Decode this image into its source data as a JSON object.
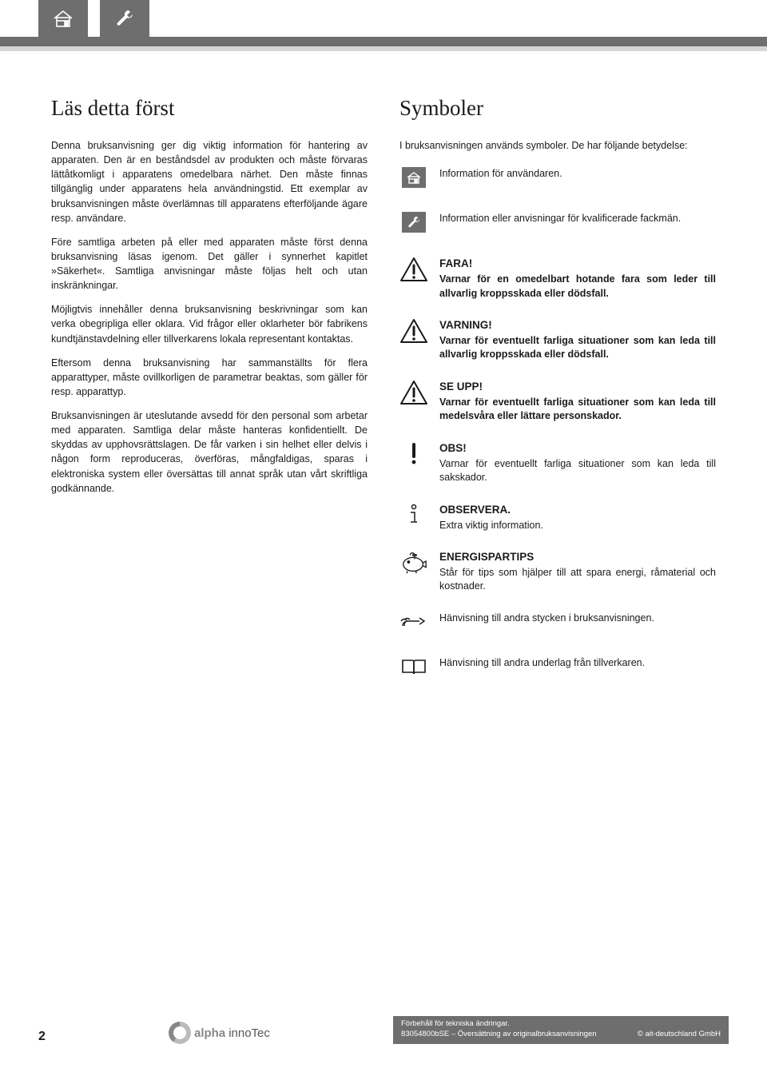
{
  "colors": {
    "gray": "#6e6e6e",
    "text": "#1a1a1a",
    "white": "#ffffff"
  },
  "left": {
    "heading": "Läs detta först",
    "paragraphs": [
      "Denna bruksanvisning ger dig viktig information för hantering av apparaten. Den är en beståndsdel av produkten och måste förvaras lättåtkomligt i apparatens omedelbara närhet. Den måste finnas tillgänglig under apparatens hela användningstid. Ett exemplar av bruksanvisningen måste överlämnas till apparatens efterföljande ägare resp. användare.",
      "Före samtliga arbeten på eller med apparaten måste först denna bruksanvisning läsas igenom. Det gäller i synnerhet kapitlet »Säkerhet«. Samtliga anvisningar måste följas helt och utan inskränkningar.",
      "Möjligtvis innehåller denna bruksanvisning beskrivningar som kan verka obegripliga eller oklara. Vid frågor eller oklarheter bör fabrikens kundtjänstavdelning eller tillverkarens lokala representant kontaktas.",
      "Eftersom denna bruksanvisning har sammanställts för flera apparattyper, måste ovillkorligen de parametrar beaktas, som gäller för resp. apparattyp.",
      "Bruksanvisningen är uteslutande avsedd för den personal som arbetar med apparaten. Samtliga delar måste hanteras konfidentiellt. De skyddas av upphovsrättslagen. De får varken i sin helhet eller delvis i någon form reproduceras, överföras, mångfaldigas, sparas i elektroniska system eller översättas till annat språk utan vårt skriftliga godkännande."
    ]
  },
  "right": {
    "heading": "Symboler",
    "intro": "I bruksanvisningen används symboler. De har följande betydelse:",
    "items": [
      {
        "icon": "home-badge",
        "title": "",
        "body": "Information för användaren.",
        "bold": false
      },
      {
        "icon": "wrench-badge",
        "title": "",
        "body": "Information eller anvisningar för kvalificerade fackmän.",
        "bold": false
      },
      {
        "icon": "warn-tri",
        "title": "FARA!",
        "body": "Varnar för en omedelbart hotande fara som leder till allvarlig kroppsskada eller dödsfall.",
        "bold": true
      },
      {
        "icon": "warn-tri",
        "title": "VARNING!",
        "body": "Varnar för eventuellt farliga situationer som kan leda till allvarlig kroppsskada eller dödsfall.",
        "bold": true
      },
      {
        "icon": "warn-tri",
        "title": "SE UPP!",
        "body": "Varnar för eventuellt farliga situationer som kan leda till medelsvåra eller lättare personskador.",
        "bold": true
      },
      {
        "icon": "exclaim",
        "title": "OBS!",
        "body": "Varnar för eventuellt farliga situationer som kan leda till sakskador.",
        "bold": false
      },
      {
        "icon": "info-i",
        "title": "OBSERVERA.",
        "body": "Extra viktig information.",
        "bold": false
      },
      {
        "icon": "piggy",
        "title": "ENERGISPARTIPS",
        "body": "Står för tips som hjälper till att spara energi, råmaterial och kostnader.",
        "bold": false
      },
      {
        "icon": "hand",
        "title": "",
        "body": "Hänvisning till andra stycken i bruksanvisningen.",
        "bold": false
      },
      {
        "icon": "book",
        "title": "",
        "body": "Hänvisning till andra underlag från tillverkaren.",
        "bold": false
      }
    ]
  },
  "footer": {
    "page": "2",
    "logo_text_a": "alpha",
    "logo_text_b": "innoTec",
    "line1": "Förbehåll för tekniska ändringar.",
    "line2_left": "83054800bSE – Översättning av originalbruksanvisningen",
    "line2_right": "© ait-deutschland GmbH"
  }
}
